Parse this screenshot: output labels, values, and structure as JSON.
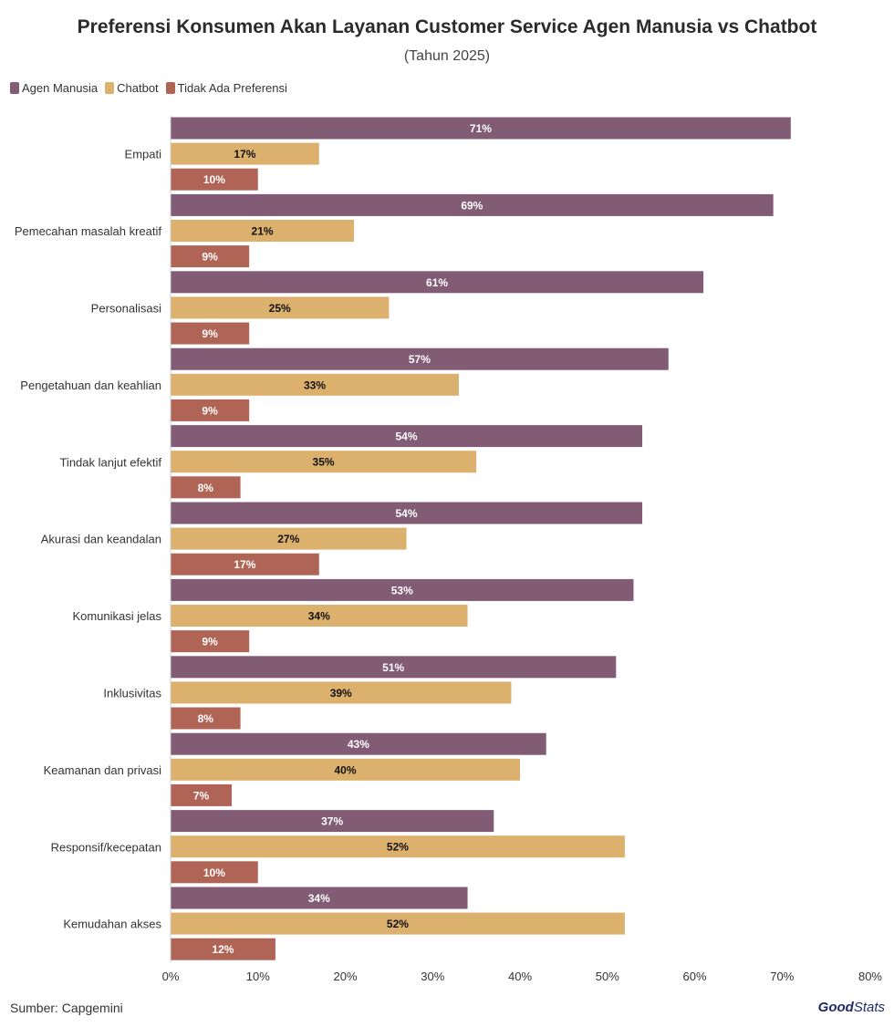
{
  "chart_data": {
    "type": "bar",
    "orientation": "horizontal",
    "title": "Preferensi Konsumen Akan Layanan Customer Service Agen Manusia vs Chatbot",
    "subtitle": "(Tahun 2025)",
    "categories": [
      "Empati",
      "Pemecahan masalah kreatif",
      "Personalisasi",
      "Pengetahuan dan keahlian",
      "Tindak lanjut efektif",
      "Akurasi dan keandalan",
      "Komunikasi jelas",
      "Inklusivitas",
      "Keamanan dan privasi",
      "Responsif/kecepatan",
      "Kemudahan akses"
    ],
    "series": [
      {
        "name": "Agen Manusia",
        "color": "#825b75",
        "label_color": "#ffffff",
        "values": [
          71,
          69,
          61,
          57,
          54,
          54,
          53,
          51,
          43,
          37,
          34
        ]
      },
      {
        "name": "Chatbot",
        "color": "#dcb06d",
        "label_color": "#111111",
        "values": [
          17,
          21,
          25,
          33,
          35,
          27,
          34,
          39,
          40,
          52,
          52
        ]
      },
      {
        "name": "Tidak Ada Preferensi",
        "color": "#b06456",
        "label_color": "#ffffff",
        "values": [
          10,
          9,
          9,
          9,
          8,
          17,
          9,
          8,
          7,
          10,
          12
        ]
      }
    ],
    "xlim": [
      0,
      80
    ],
    "xticks": [
      0,
      10,
      20,
      30,
      40,
      50,
      60,
      70,
      80
    ],
    "tick_suffix": "%",
    "xlabel": "",
    "ylabel": "",
    "legend_position": "top-left"
  },
  "footer": {
    "source": "Sumber: Capgemini",
    "brand_bold": "Good",
    "brand_rest": "Stats"
  }
}
